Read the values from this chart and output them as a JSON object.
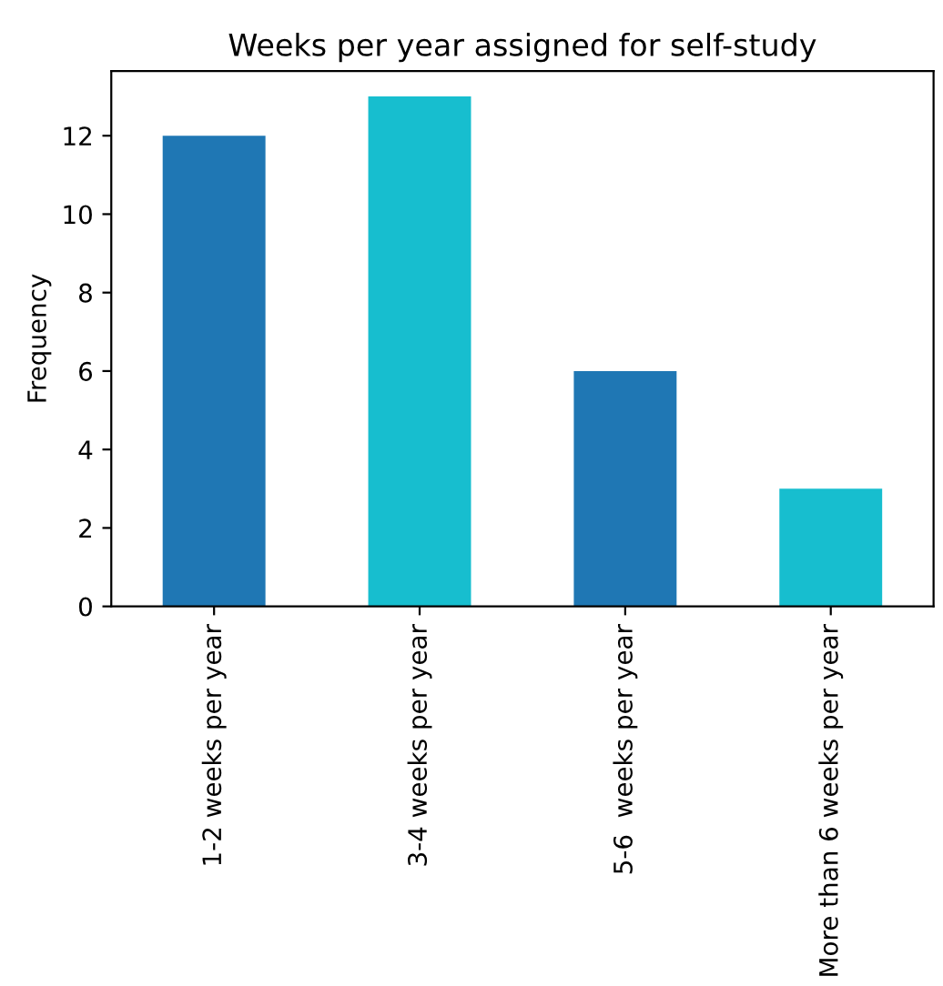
{
  "chart_data": {
    "type": "bar",
    "title": "Weeks per year assigned for self-study",
    "ylabel": "Frequency",
    "categories": [
      "1-2 weeks per year",
      "3-4 weeks per year",
      "5-6  weeks per year",
      "More than 6 weeks per year"
    ],
    "values": [
      12,
      13,
      6,
      3
    ],
    "colors": [
      "#1f77b4",
      "#17becf",
      "#1f77b4",
      "#17becf"
    ],
    "ylim": [
      0,
      13.65
    ],
    "yticks": [
      0,
      2,
      4,
      6,
      8,
      10,
      12
    ],
    "grid": false,
    "legend": false
  }
}
